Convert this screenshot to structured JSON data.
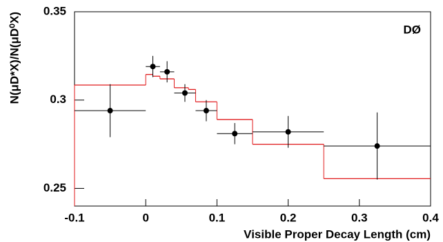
{
  "chart_data": {
    "type": "errorbar",
    "ylabel": "N(μD*X)/N(μD⁰X)",
    "xlabel": "Visible Proper Decay Length (cm)",
    "annotation": "DØ",
    "xlim": [
      -0.1,
      0.4
    ],
    "xticks": [
      -0.1,
      0,
      0.1,
      0.2,
      0.3,
      0.4
    ],
    "ylim": [
      0.24,
      0.35
    ],
    "yticks": [
      0.25,
      0.3,
      0.35
    ],
    "points": {
      "color": "#000000",
      "x": [
        -0.05,
        0.01,
        0.03,
        0.055,
        0.085,
        0.125,
        0.2,
        0.325
      ],
      "xerr": [
        0.05,
        0.01,
        0.01,
        0.015,
        0.015,
        0.025,
        0.05,
        0.075
      ],
      "values": [
        0.294,
        0.319,
        0.316,
        0.304,
        0.294,
        0.281,
        0.282,
        0.274
      ],
      "yerr": [
        0.015,
        0.006,
        0.006,
        0.005,
        0.006,
        0.006,
        0.009,
        0.019
      ]
    },
    "histogram": {
      "color": "#e0191b",
      "bins": [
        -0.1,
        0,
        0.01,
        0.02,
        0.04,
        0.06,
        0.07,
        0.1,
        0.15,
        0.25,
        0.4
      ],
      "values": [
        0.3085,
        0.3145,
        0.3135,
        0.312,
        0.307,
        0.306,
        0.299,
        0.289,
        0.275,
        0.2555
      ]
    }
  }
}
